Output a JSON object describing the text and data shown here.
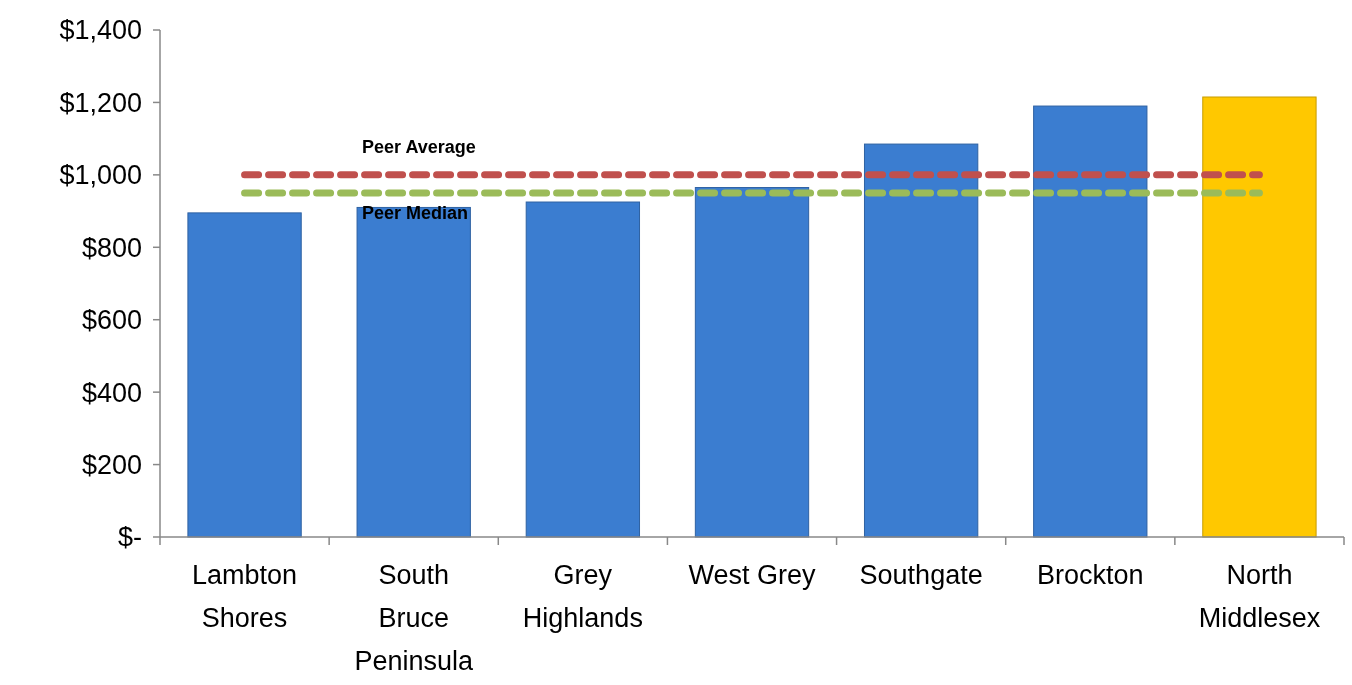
{
  "chart_data": {
    "type": "bar",
    "categories": [
      "Lambton Shores",
      "South Bruce Peninsula",
      "Grey Highlands",
      "West Grey",
      "Southgate",
      "Brockton",
      "North Middlesex"
    ],
    "values": [
      895,
      910,
      925,
      965,
      1085,
      1190,
      1215
    ],
    "colors": [
      "#3b7dd0",
      "#3b7dd0",
      "#3b7dd0",
      "#3b7dd0",
      "#3b7dd0",
      "#3b7dd0",
      "#ffc800"
    ],
    "ylim": [
      0,
      1400
    ],
    "yticks": [
      {
        "value": 0,
        "label": "$-"
      },
      {
        "value": 200,
        "label": "$200"
      },
      {
        "value": 400,
        "label": "$400"
      },
      {
        "value": 600,
        "label": "$600"
      },
      {
        "value": 800,
        "label": "$800"
      },
      {
        "value": 1000,
        "label": "$1,000"
      },
      {
        "value": 1200,
        "label": "$1,200"
      },
      {
        "value": 1400,
        "label": "$1,400"
      }
    ],
    "ref_lines": [
      {
        "axis": "y",
        "value": 1000,
        "label": "Peer Average",
        "color": "#c0504d",
        "line_style": "dashed"
      },
      {
        "axis": "y",
        "value": 950,
        "label": "Peer Median",
        "color": "#9bbb59",
        "line_style": "dashed"
      }
    ],
    "grid": false
  }
}
